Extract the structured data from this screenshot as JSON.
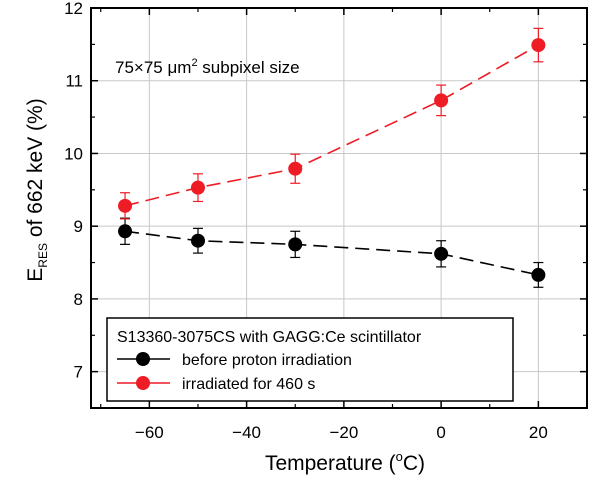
{
  "chart_data": {
    "type": "scatter",
    "x_label_main": "Temperature (",
    "x_label_sup": "o",
    "x_label_end": "C)",
    "y_label_main": "E",
    "y_label_sub": "RES",
    "y_label_rest": " of 662 keV (%)",
    "annotation_main": "75×75 μm",
    "annotation_sup": "2",
    "annotation_rest": " subpixel size",
    "legend_title": "S13360-3075CS with GAGG:Ce scintillator",
    "xlim": [
      -72,
      30
    ],
    "ylim": [
      6.5,
      12
    ],
    "xticks": [
      -60,
      -40,
      -20,
      0,
      20
    ],
    "xtick_labels": [
      "−60",
      "−40",
      "−20",
      "0",
      "20"
    ],
    "yticks": [
      7,
      8,
      9,
      10,
      11,
      12
    ],
    "ytick_labels": [
      "7",
      "8",
      "9",
      "10",
      "11",
      "12"
    ],
    "grid": true,
    "legend_position": "bottom-left",
    "series": [
      {
        "name": "before proton irradiation",
        "color": "#000000",
        "line_style": "dashed",
        "x": [
          -65,
          -50,
          -30,
          0,
          20
        ],
        "y": [
          8.93,
          8.8,
          8.75,
          8.62,
          8.33
        ],
        "yerr": [
          0.18,
          0.17,
          0.18,
          0.18,
          0.17
        ]
      },
      {
        "name": "irradiated for 460 s",
        "color": "#ee1c25",
        "line_style": "dashed",
        "x": [
          -65,
          -50,
          -30,
          0,
          20
        ],
        "y": [
          9.28,
          9.53,
          9.79,
          10.73,
          11.49
        ],
        "yerr": [
          0.18,
          0.19,
          0.2,
          0.21,
          0.23
        ]
      }
    ]
  }
}
